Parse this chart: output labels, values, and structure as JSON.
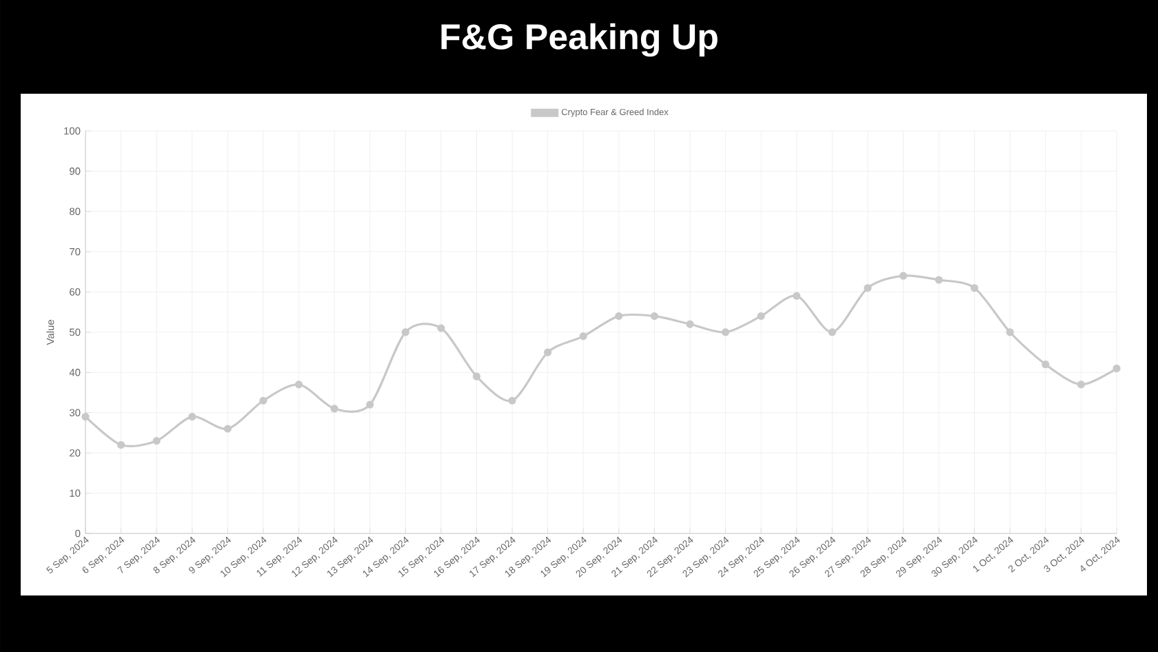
{
  "chart_data": {
    "type": "line",
    "title": "F&G Peaking Up",
    "ylabel": "Value",
    "categories": [
      "5 Sep, 2024",
      "6 Sep, 2024",
      "7 Sep, 2024",
      "8 Sep, 2024",
      "9 Sep, 2024",
      "10 Sep, 2024",
      "11 Sep, 2024",
      "12 Sep, 2024",
      "13 Sep, 2024",
      "14 Sep, 2024",
      "15 Sep, 2024",
      "16 Sep, 2024",
      "17 Sep, 2024",
      "18 Sep, 2024",
      "19 Sep, 2024",
      "20 Sep, 2024",
      "21 Sep, 2024",
      "22 Sep, 2024",
      "23 Sep, 2024",
      "24 Sep, 2024",
      "25 Sep, 2024",
      "26 Sep, 2024",
      "27 Sep, 2024",
      "28 Sep, 2024",
      "29 Sep, 2024",
      "30 Sep, 2024",
      "1 Oct, 2024",
      "2 Oct, 2024",
      "3 Oct, 2024",
      "4 Oct, 2024"
    ],
    "series": [
      {
        "name": "Crypto Fear & Greed Index",
        "color": "#c8c8c8",
        "values": [
          29,
          22,
          23,
          29,
          26,
          33,
          37,
          31,
          32,
          50,
          51,
          39,
          33,
          45,
          49,
          54,
          54,
          52,
          50,
          54,
          59,
          50,
          61,
          64,
          63,
          61,
          50,
          42,
          37,
          41
        ]
      }
    ],
    "ylim": [
      0,
      100
    ],
    "yticks": [
      0,
      10,
      20,
      30,
      40,
      50,
      60,
      70,
      80,
      90,
      100
    ],
    "grid": true,
    "legend": "top",
    "marker": "circle",
    "line_style": "solid"
  }
}
